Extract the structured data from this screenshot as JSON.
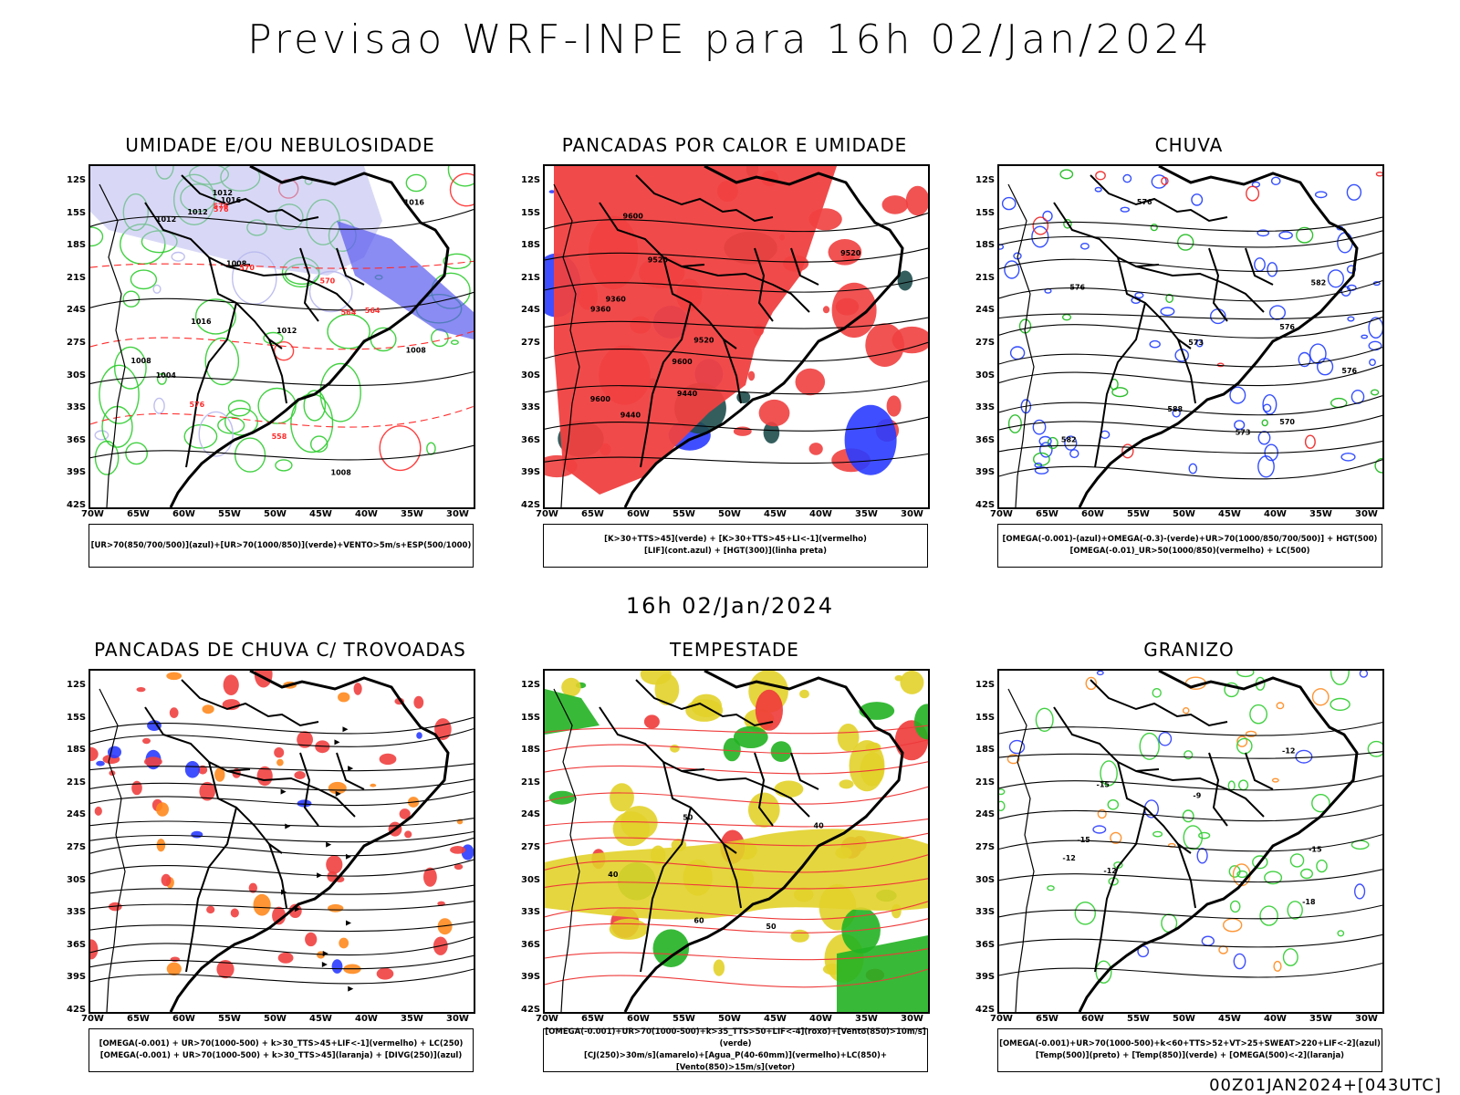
{
  "main_title": "Previsao WRF-INPE  para 16h 02/Jan/2024",
  "mid_time": "16h 02/Jan/2024",
  "footer_run": "00Z01JAN2024+[043UTC]",
  "lat_ticks": [
    "12S",
    "15S",
    "18S",
    "21S",
    "24S",
    "27S",
    "30S",
    "33S",
    "36S",
    "39S",
    "42S"
  ],
  "lon_ticks": [
    "70W",
    "65W",
    "60W",
    "55W",
    "50W",
    "45W",
    "40W",
    "35W",
    "30W"
  ],
  "panels": [
    {
      "title": "UMIDADE E/OU NEBULOSIDADE",
      "legend": [
        "[UR>70(850/700/500)](azul)+[UR>70(1000/850)](verde)+VENTO>5m/s+ESP(500/1000)"
      ],
      "contour_labels": [
        "1008",
        "1008",
        "1008",
        "1004",
        "1008",
        "1012",
        "1012",
        "1016",
        "1012",
        "1016",
        "1016",
        "1012",
        "576",
        "576",
        "570",
        "564",
        "558",
        "570",
        "564",
        "576"
      ],
      "colors": {
        "primary": "#2ecc2e",
        "secondary": "#b8b8ee",
        "accent": "#ff2b2b",
        "line": "#000000"
      }
    },
    {
      "title": "PANCADAS POR CALOR E UMIDADE",
      "legend": [
        "[K>30+TTS>45](verde) + [K>30+TTS>45+LI<-1](vermelho)",
        "[LIF](cont.azul) + [HGT(300)](linha preta)"
      ],
      "contour_labels": [
        "9600",
        "9600",
        "9600",
        "9520",
        "9520",
        "9440",
        "9440",
        "9360",
        "9360",
        "9520"
      ],
      "colors": {
        "primary": "#f04040",
        "secondary": "#1e4d4d",
        "accent": "#2a3cff",
        "line": "#000000"
      }
    },
    {
      "title": "CHUVA",
      "legend": [
        "[OMEGA(-0.001)-(azul)+OMEGA(-0.3)-(verde)+UR>70(1000/850/700/500)] + HGT(500)",
        "[OMEGA(-0.01)_UR>50(1000/850)(vermelho) + LC(500)"
      ],
      "contour_labels": [
        "588",
        "582",
        "582",
        "576",
        "576",
        "573",
        "570",
        "576",
        "573",
        "576"
      ],
      "colors": {
        "primary": "#1f3cff",
        "secondary": "#18b818",
        "accent": "#ee2222",
        "line": "#000000"
      }
    },
    {
      "title": "PANCADAS DE CHUVA C/ TROVOADAS",
      "legend": [
        "[OMEGA(-0.001) + UR>70(1000-500) + k>30_TTS>45+LIF<-1](vermelho) + LC(250)",
        "[OMEGA(-0.001) + UR>70(1000-500) + k>30_TTS>45](laranja) + [DIVG(250)](azul)"
      ],
      "contour_labels": [],
      "colors": {
        "primary": "#f04040",
        "secondary": "#ff8a1e",
        "accent": "#2a3cff",
        "line": "#000000"
      }
    },
    {
      "title": "TEMPESTADE",
      "legend": [
        "[OMEGA(-0.001)+UR>70(1000-500)+k>35_TTS>50+LIF<-4](roxo)+[Vento(850)>10m/s](verde)",
        "[CJ(250)>30m/s](amarelo)+[Agua_P(40-60mm)](vermelho)+LC(850)+[Vento(850)>15m/s](vetor)"
      ],
      "contour_labels": [
        "40",
        "40",
        "50",
        "60",
        "50"
      ],
      "colors": {
        "primary": "#e2d22a",
        "secondary": "#22b322",
        "accent": "#ee3a3a",
        "line": "#000000"
      }
    },
    {
      "title": "GRANIZO",
      "legend": [
        "[OMEGA(-0.001)+UR>70(1000-500)+k<60+TTS>52+VT>25+SWEAT>220+LIF<-2](azul)",
        "[Temp(500)](preto) + [Temp(850)](verde) + [OMEGA(500)<-2](laranja)"
      ],
      "contour_labels": [
        "-9",
        "-12",
        "-12",
        "-15",
        "-15",
        "-18",
        "-15",
        "-12"
      ],
      "colors": {
        "primary": "#2ecc2e",
        "secondary": "#ff8a1e",
        "accent": "#2a3cff",
        "line": "#000000"
      }
    }
  ]
}
